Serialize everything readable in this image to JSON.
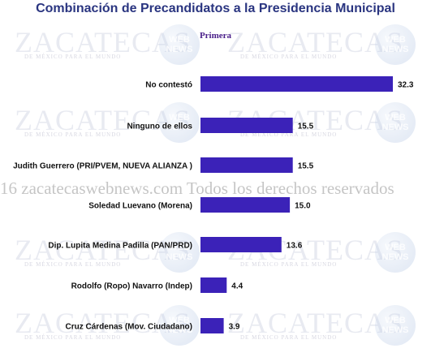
{
  "chart_data": {
    "type": "bar",
    "orientation": "horizontal",
    "title": "Combinación de Precandidatos a la Presidencia Municipal",
    "subtitle": "Primera",
    "categories": [
      "No contestó",
      "Ninguno de ellos",
      "Judith Guerrero (PRI/PVEM, NUEVA  ALIANZA )",
      "Soledad Luevano (Morena)",
      "Dip. Lupita Medina Padilla (PAN/PRD)",
      "Rodolfo (Ropo) Navarro (Indep)",
      "Cruz Cárdenas (Mov. Ciudadano)"
    ],
    "values": [
      32.3,
      15.5,
      15.5,
      15.0,
      13.6,
      4.4,
      3.9
    ],
    "value_labels": [
      "32.3",
      "15.5",
      "15.5",
      "15.0",
      "13.6",
      "4.4",
      "3.9"
    ],
    "xlim": [
      0,
      32.3
    ],
    "grid": false,
    "legend": "none",
    "bar_color": "#3b22b8",
    "title_color": "#2a3580",
    "subtitle_color": "#4a1f8a"
  },
  "watermark": {
    "logo_text": "ZACATECAS",
    "tagline": "DE MÉXICO PARA EL MUNDO",
    "globe_text": "WEB NEWS",
    "copyright": "16 zacatecaswebnews.com Todos los derechos reservados"
  }
}
